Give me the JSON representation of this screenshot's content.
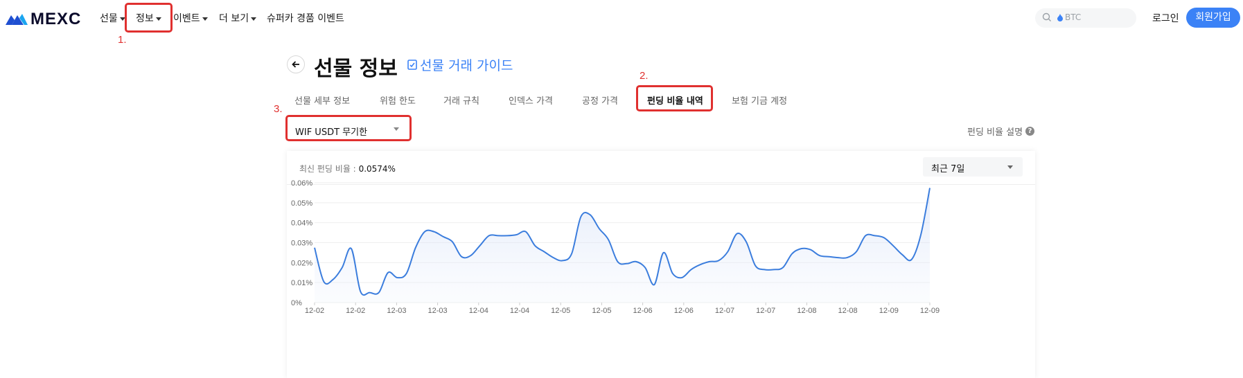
{
  "nav": {
    "logo_text": "MEXC",
    "items": [
      {
        "label": "선물",
        "caret": true
      },
      {
        "label": "정보",
        "caret": true
      },
      {
        "label": "이벤트",
        "caret": true
      },
      {
        "label": "더 보기",
        "caret": true
      },
      {
        "label": "슈퍼카 경품 이벤트",
        "caret": false
      }
    ],
    "search_placeholder": "BTC",
    "login": "로그인",
    "signup": "회원가입",
    "accent": "#3b82f6"
  },
  "annotations": [
    "1.",
    "2.",
    "3."
  ],
  "header": {
    "title": "선물 정보",
    "guide_link": "선물 거래 가이드"
  },
  "tabs": [
    {
      "label": "선물 세부 정보",
      "active": false
    },
    {
      "label": "위험 한도",
      "active": false
    },
    {
      "label": "거래 규칙",
      "active": false
    },
    {
      "label": "인덱스 가격",
      "active": false
    },
    {
      "label": "공정 가격",
      "active": false
    },
    {
      "label": "펀딩 비율 내역",
      "active": true
    },
    {
      "label": "보험 기금 계정",
      "active": false
    }
  ],
  "pair_select": "WIF USDT 무기한",
  "explain_link": "펀딩 비율 설명",
  "latest": {
    "label": "최신 펀딩 비율 :",
    "value": "0.0574%"
  },
  "period_select": "최근 7일",
  "chart_data": {
    "type": "area",
    "ytick_labels": [
      "0%",
      "0.01%",
      "0.02%",
      "0.03%",
      "0.04%",
      "0.05%",
      "0.06%"
    ],
    "ylim": [
      0,
      0.06
    ],
    "yunit": "%",
    "xtick_labels": [
      "12-02",
      "12-02",
      "12-03",
      "12-03",
      "12-04",
      "12-04",
      "12-05",
      "12-05",
      "12-06",
      "12-06",
      "12-07",
      "12-07",
      "12-08",
      "12-08",
      "12-09",
      "12-09"
    ],
    "line_color": "#3b7ddd",
    "grid": true,
    "series": [
      {
        "values": [
          0.0275,
          0.0105,
          0.0115,
          0.0175,
          0.027,
          0.0055,
          0.005,
          0.005,
          0.015,
          0.0125,
          0.0145,
          0.0275,
          0.0355,
          0.0355,
          0.033,
          0.0305,
          0.023,
          0.0235,
          0.0285,
          0.0335,
          0.0335,
          0.0335,
          0.034,
          0.0355,
          0.0285,
          0.0255,
          0.0225,
          0.021,
          0.0245,
          0.043,
          0.044,
          0.037,
          0.0315,
          0.0205,
          0.0195,
          0.0205,
          0.0175,
          0.009,
          0.025,
          0.0145,
          0.0125,
          0.0165,
          0.019,
          0.0205,
          0.021,
          0.0255,
          0.0345,
          0.0305,
          0.0185,
          0.0165,
          0.0165,
          0.0175,
          0.0245,
          0.027,
          0.0265,
          0.0235,
          0.023,
          0.0225,
          0.0225,
          0.0255,
          0.0335,
          0.0335,
          0.0325,
          0.0285,
          0.024,
          0.0215,
          0.0335,
          0.0574
        ]
      }
    ]
  }
}
